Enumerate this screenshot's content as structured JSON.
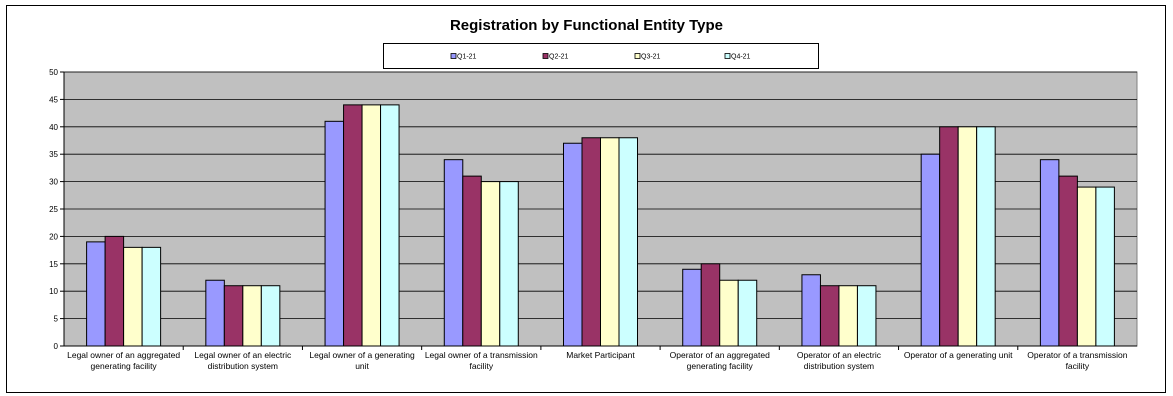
{
  "chart_data": {
    "type": "bar",
    "title": "Registration by Functional Entity Type",
    "xlabel": "",
    "ylabel": "",
    "ylim": [
      0,
      50
    ],
    "yticks": [
      0,
      5,
      10,
      15,
      20,
      25,
      30,
      35,
      40,
      45,
      50
    ],
    "grid": true,
    "legend_position": "top",
    "categories": [
      "Legal owner of an aggregated generating facility",
      "Legal owner of an electric distribution system",
      "Legal owner of a generating unit",
      "Legal owner of a transmission facility",
      "Market Participant",
      "Operator of an aggregated generating facility",
      "Operator of an electric distribution system",
      "Operator of a generating unit",
      "Operator of a transmission facility"
    ],
    "category_label_lines": [
      [
        "Legal owner of an aggregated",
        "generating facility"
      ],
      [
        "Legal owner of an electric",
        "distribution system"
      ],
      [
        "Legal owner of a generating",
        "unit"
      ],
      [
        "Legal owner of a transmission",
        "facility"
      ],
      [
        "Market Participant"
      ],
      [
        "Operator of an aggregated",
        "generating facility"
      ],
      [
        "Operator of an electric",
        "distribution system"
      ],
      [
        "Operator of a generating unit"
      ],
      [
        "Operator of a transmission",
        "facility"
      ]
    ],
    "series": [
      {
        "name": "Q1-21",
        "color": "#9999ff",
        "values": [
          19,
          12,
          41,
          34,
          37,
          14,
          13,
          35,
          34
        ]
      },
      {
        "name": "Q2-21",
        "color": "#993366",
        "values": [
          20,
          11,
          44,
          31,
          38,
          15,
          11,
          40,
          31
        ]
      },
      {
        "name": "Q3-21",
        "color": "#ffffcc",
        "values": [
          18,
          11,
          44,
          30,
          38,
          12,
          11,
          40,
          29
        ]
      },
      {
        "name": "Q4-21",
        "color": "#ccffff",
        "values": [
          18,
          11,
          44,
          30,
          38,
          12,
          11,
          40,
          29
        ]
      }
    ],
    "plot_background": "#c0c0c0"
  }
}
